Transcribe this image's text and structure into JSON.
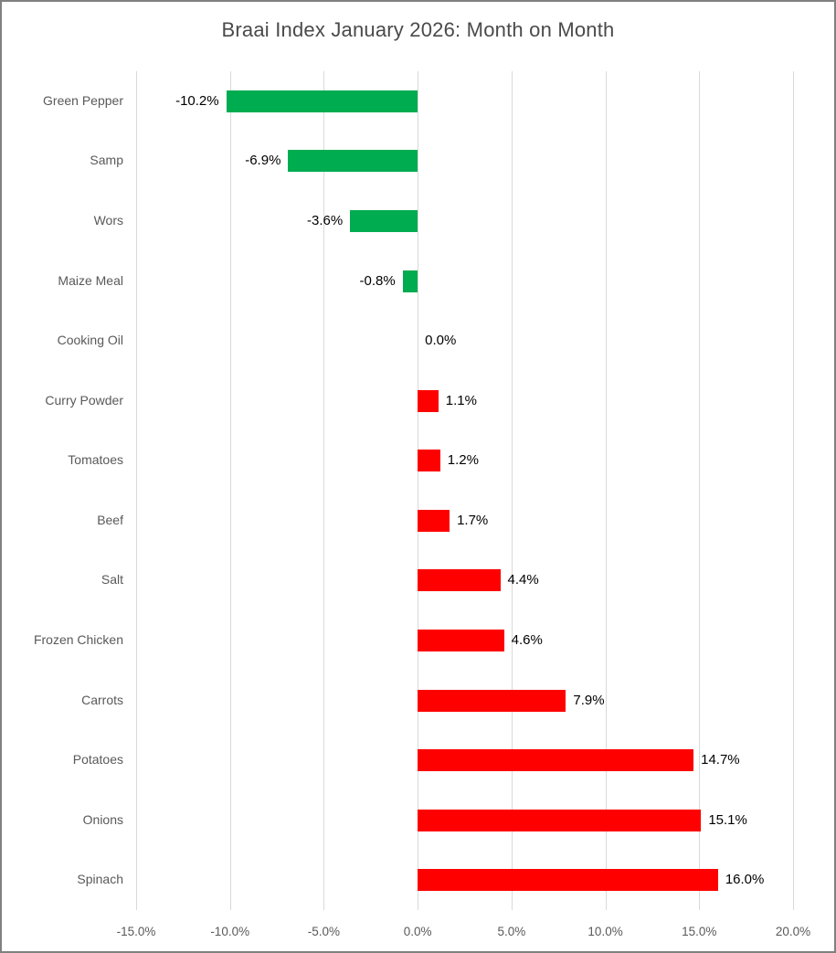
{
  "title": "Braai Index January 2026: Month on Month",
  "chart_data": {
    "type": "bar",
    "orientation": "horizontal",
    "title": "Braai Index January 2026: Month on Month",
    "categories": [
      "Green Pepper",
      "Samp",
      "Wors",
      "Maize Meal",
      "Cooking Oil",
      "Curry Powder",
      "Tomatoes",
      "Beef",
      "Salt",
      "Frozen Chicken",
      "Carrots",
      "Potatoes",
      "Onions",
      "Spinach"
    ],
    "values": [
      -10.2,
      -6.9,
      -3.6,
      -0.8,
      0.0,
      1.1,
      1.2,
      1.7,
      4.4,
      4.6,
      7.9,
      14.7,
      15.1,
      16.0
    ],
    "value_labels": [
      "-10.2%",
      "-6.9%",
      "-3.6%",
      "-0.8%",
      "0.0%",
      "1.1%",
      "1.2%",
      "1.7%",
      "4.4%",
      "4.6%",
      "7.9%",
      "14.7%",
      "15.1%",
      "16.0%"
    ],
    "x_tick_labels": [
      "-15.0%",
      "-10.0%",
      "-5.0%",
      "0.0%",
      "5.0%",
      "10.0%",
      "15.0%",
      "20.0%"
    ],
    "x_tick_values": [
      -15,
      -10,
      -5,
      0,
      5,
      10,
      15,
      20
    ],
    "xlim": [
      -15,
      20
    ],
    "xlabel": "",
    "ylabel": "",
    "grid": "vertical-only",
    "legend": "none",
    "colors": {
      "positive_bar": "#FF0000",
      "negative_bar": "#00AC50",
      "gridline": "#d9d9d9",
      "axis_text": "#595959",
      "value_text": "#000000",
      "title_text": "#4a4a4a",
      "border": "#808080",
      "background": "#ffffff"
    }
  }
}
